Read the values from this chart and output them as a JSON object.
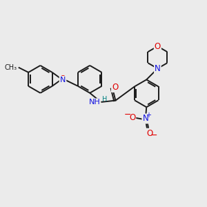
{
  "bg": "#ebebeb",
  "bond_color": "#1a1a1a",
  "bond_lw": 1.4,
  "atom_colors": {
    "N": "#1010e0",
    "O": "#e00000",
    "H": "#008080"
  },
  "dpi": 100
}
